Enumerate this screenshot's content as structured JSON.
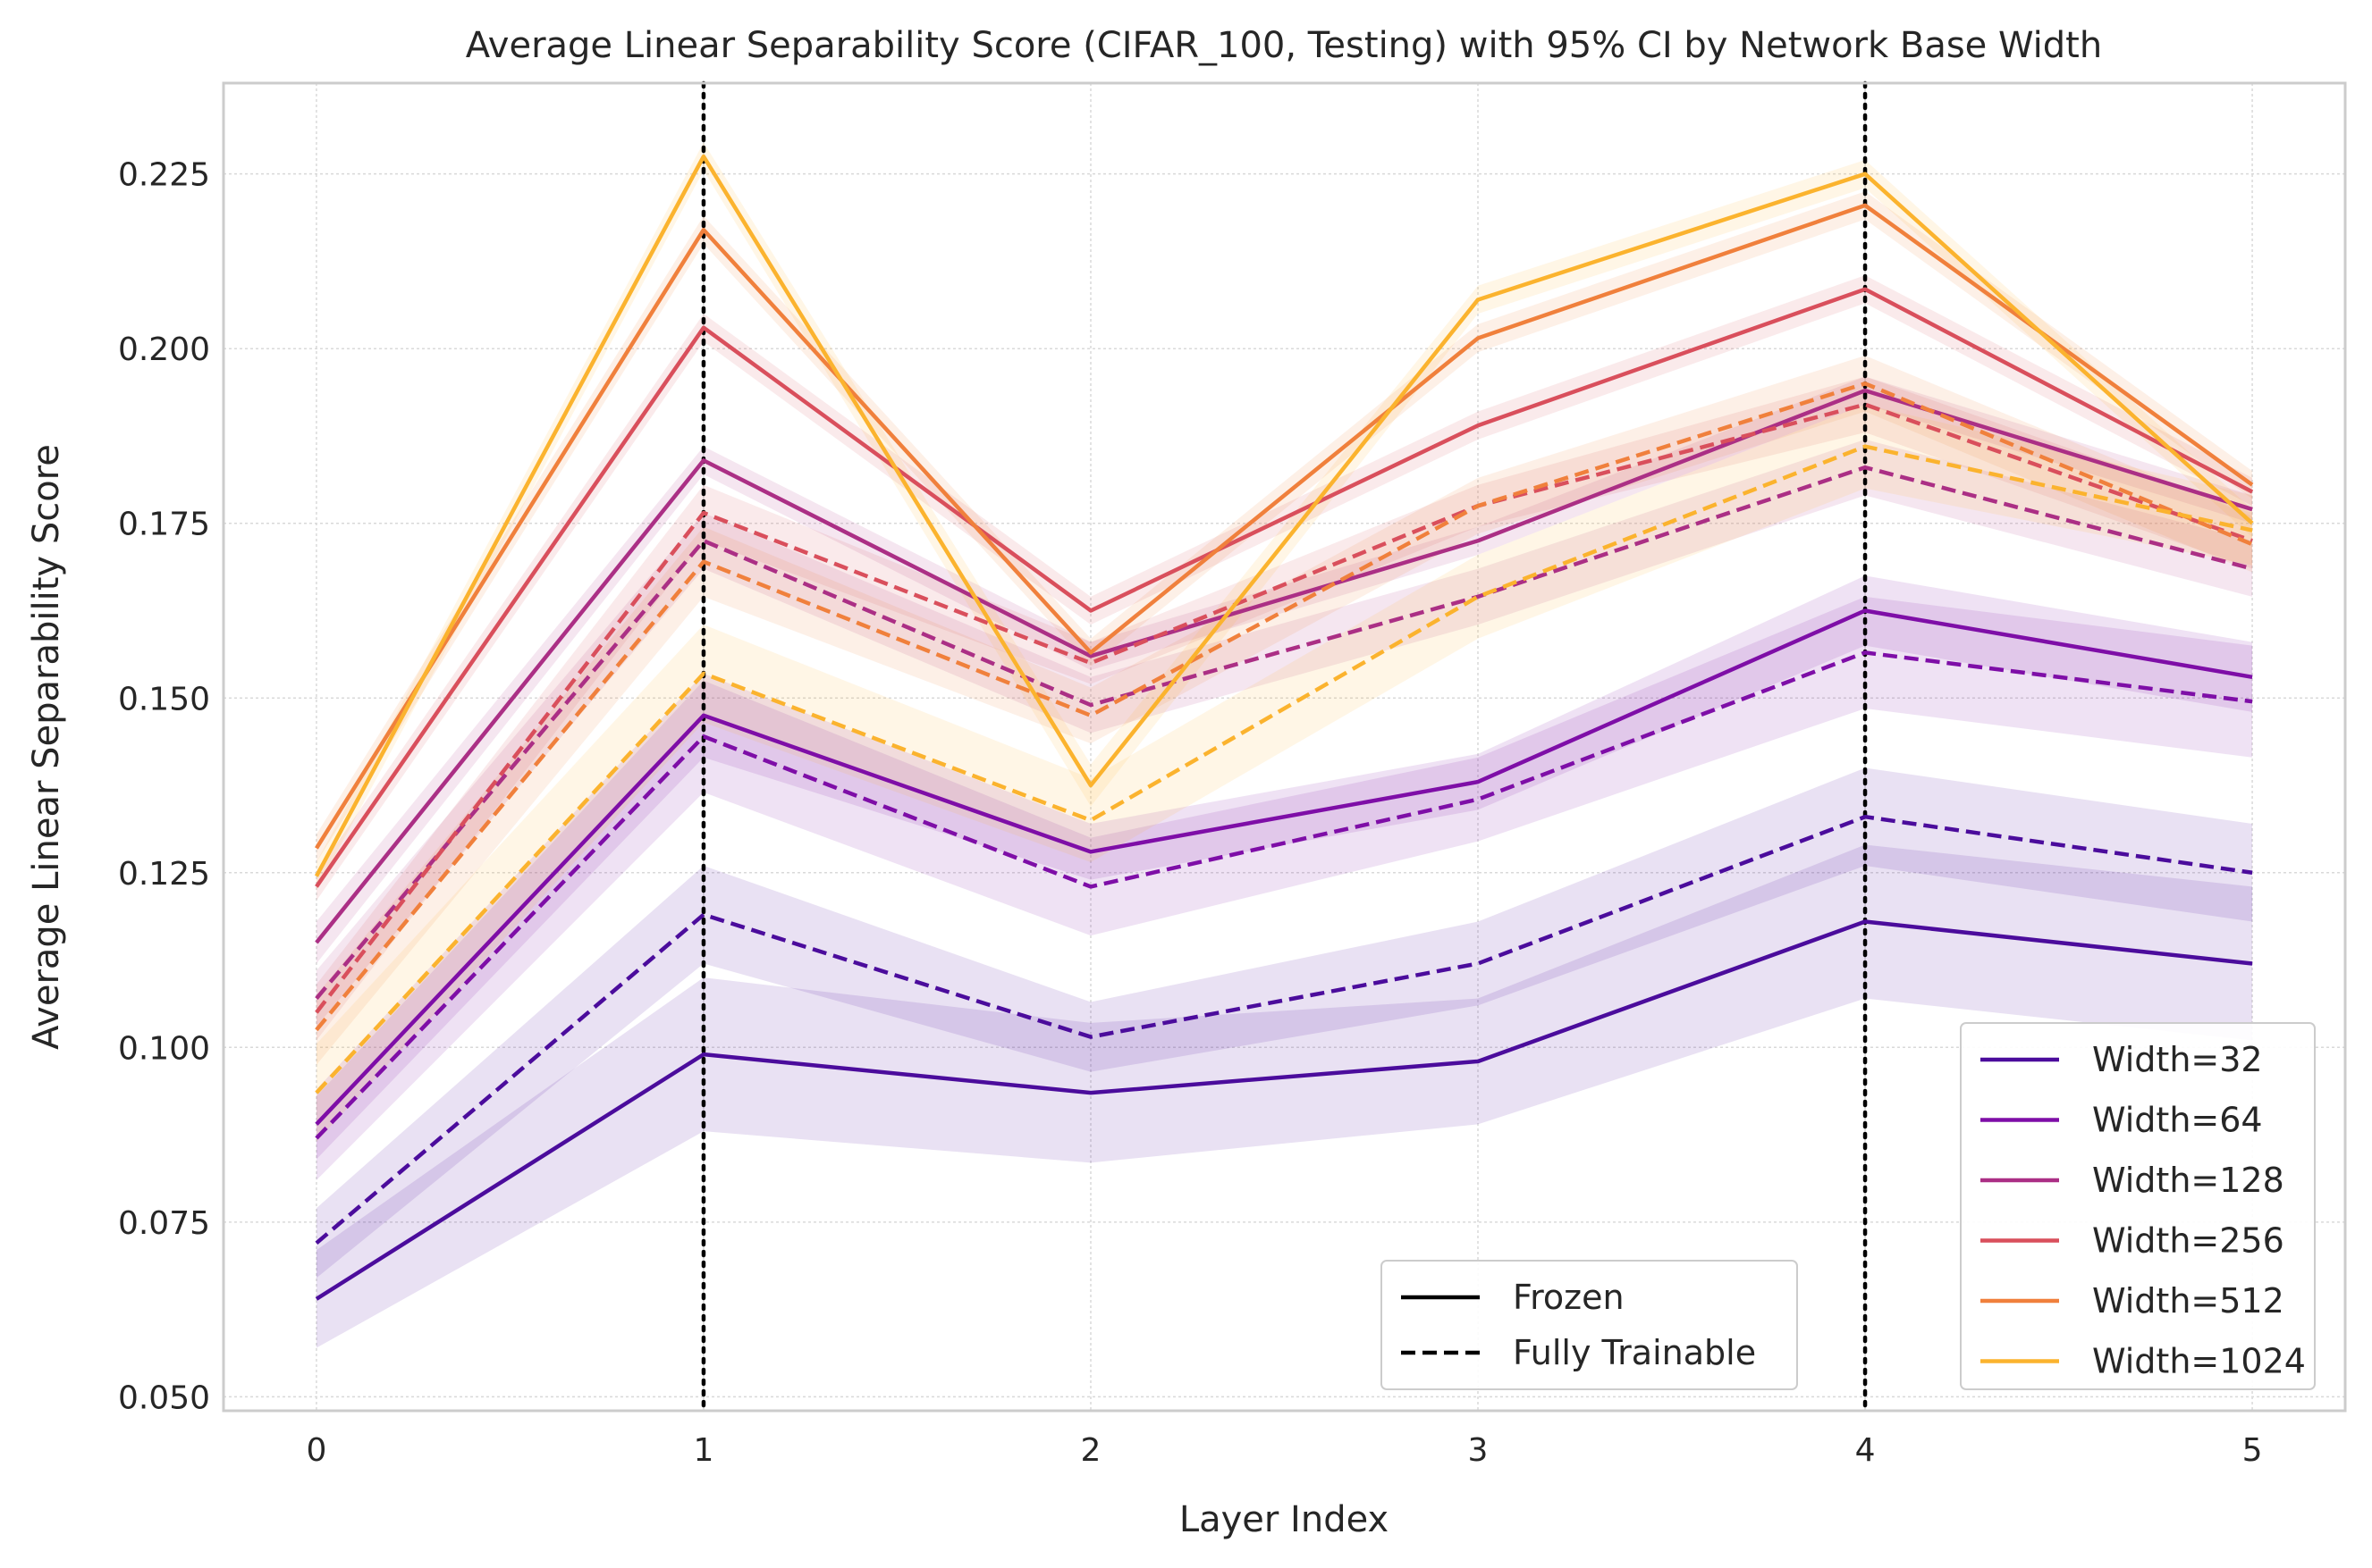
{
  "chart_data": {
    "type": "line",
    "title": "Average Linear Separability Score (CIFAR_100, Testing) with 95% CI by Network Base Width",
    "xlabel": "Layer Index",
    "ylabel": "Average Linear Separability Score",
    "x": [
      0,
      1,
      2,
      3,
      4,
      5
    ],
    "x_ticks": [
      "0",
      "1",
      "2",
      "3",
      "4",
      "5"
    ],
    "y_ticks": [
      "0.050",
      "0.075",
      "0.100",
      "0.125",
      "0.150",
      "0.175",
      "0.200",
      "0.225"
    ],
    "xlim": [
      -0.24,
      5.24
    ],
    "ylim": [
      0.048,
      0.238
    ],
    "grid": true,
    "vlines": [
      1,
      4
    ],
    "style_legend": {
      "placement": "lower-center-right",
      "items": [
        {
          "label": "Frozen",
          "dash": "solid"
        },
        {
          "label": "Fully Trainable",
          "dash": "dashed"
        }
      ]
    },
    "width_legend": {
      "placement": "lower-right",
      "items": [
        {
          "label": "Width=32",
          "color": "#4b0c9c"
        },
        {
          "label": "Width=64",
          "color": "#7e0ea7"
        },
        {
          "label": "Width=128",
          "color": "#ab2f85"
        },
        {
          "label": "Width=256",
          "color": "#d94f5c"
        },
        {
          "label": "Width=512",
          "color": "#f0803c"
        },
        {
          "label": "Width=1024",
          "color": "#fbb32e"
        }
      ]
    },
    "series": [
      {
        "width": "Width=32",
        "mode": "Frozen",
        "color": "#4b0c9c",
        "dash": false,
        "values": [
          0.064,
          0.099,
          0.0935,
          0.098,
          0.118,
          0.112
        ],
        "ci": [
          0.007,
          0.011,
          0.01,
          0.009,
          0.011,
          0.011
        ]
      },
      {
        "width": "Width=32",
        "mode": "Fully Trainable",
        "color": "#4b0c9c",
        "dash": true,
        "values": [
          0.072,
          0.119,
          0.1015,
          0.112,
          0.133,
          0.125
        ],
        "ci": [
          0.005,
          0.007,
          0.005,
          0.006,
          0.007,
          0.007
        ]
      },
      {
        "width": "Width=64",
        "mode": "Frozen",
        "color": "#7e0ea7",
        "dash": false,
        "values": [
          0.089,
          0.1475,
          0.128,
          0.138,
          0.1625,
          0.153
        ],
        "ci": [
          0.005,
          0.006,
          0.004,
          0.004,
          0.005,
          0.005
        ]
      },
      {
        "width": "Width=64",
        "mode": "Fully Trainable",
        "color": "#7e0ea7",
        "dash": true,
        "values": [
          0.087,
          0.1445,
          0.123,
          0.1355,
          0.1565,
          0.1495
        ],
        "ci": [
          0.006,
          0.008,
          0.007,
          0.006,
          0.008,
          0.008
        ]
      },
      {
        "width": "Width=128",
        "mode": "Frozen",
        "color": "#ab2f85",
        "dash": false,
        "values": [
          0.115,
          0.184,
          0.156,
          0.1725,
          0.194,
          0.177
        ],
        "ci": [
          0.003,
          0.002,
          0.002,
          0.002,
          0.002,
          0.002
        ]
      },
      {
        "width": "Width=128",
        "mode": "Fully Trainable",
        "color": "#ab2f85",
        "dash": true,
        "values": [
          0.107,
          0.1725,
          0.149,
          0.1645,
          0.183,
          0.1685
        ],
        "ci": [
          0.004,
          0.004,
          0.004,
          0.004,
          0.004,
          0.004
        ]
      },
      {
        "width": "Width=256",
        "mode": "Frozen",
        "color": "#d94f5c",
        "dash": false,
        "values": [
          0.123,
          0.203,
          0.1625,
          0.189,
          0.2085,
          0.1795
        ],
        "ci": [
          0.002,
          0.002,
          0.002,
          0.002,
          0.002,
          0.002
        ]
      },
      {
        "width": "Width=256",
        "mode": "Fully Trainable",
        "color": "#d94f5c",
        "dash": true,
        "values": [
          0.105,
          0.1765,
          0.155,
          0.1775,
          0.192,
          0.1725
        ],
        "ci": [
          0.004,
          0.004,
          0.003,
          0.003,
          0.004,
          0.004
        ]
      },
      {
        "width": "Width=512",
        "mode": "Frozen",
        "color": "#f0803c",
        "dash": false,
        "values": [
          0.1285,
          0.217,
          0.1565,
          0.2015,
          0.2205,
          0.1805
        ],
        "ci": [
          0.002,
          0.002,
          0.002,
          0.002,
          0.002,
          0.002
        ]
      },
      {
        "width": "Width=512",
        "mode": "Fully Trainable",
        "color": "#f0803c",
        "dash": true,
        "values": [
          0.1025,
          0.1695,
          0.1475,
          0.1775,
          0.195,
          0.172
        ],
        "ci": [
          0.005,
          0.005,
          0.004,
          0.004,
          0.004,
          0.004
        ]
      },
      {
        "width": "Width=1024",
        "mode": "Frozen",
        "color": "#fbb32e",
        "dash": false,
        "values": [
          0.1245,
          0.2275,
          0.1375,
          0.207,
          0.225,
          0.175
        ],
        "ci": [
          0.002,
          0.002,
          0.003,
          0.002,
          0.002,
          0.002
        ]
      },
      {
        "width": "Width=1024",
        "mode": "Fully Trainable",
        "color": "#fbb32e",
        "dash": true,
        "values": [
          0.0935,
          0.1535,
          0.1325,
          0.1645,
          0.186,
          0.174
        ],
        "ci": [
          0.007,
          0.007,
          0.006,
          0.006,
          0.006,
          0.005
        ]
      }
    ]
  }
}
